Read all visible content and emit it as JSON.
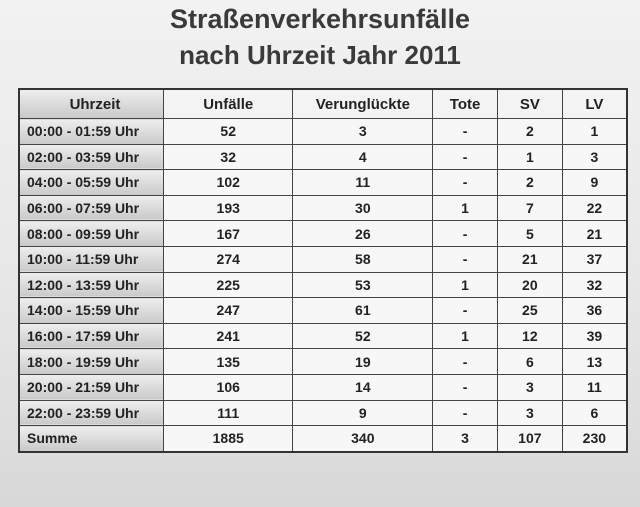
{
  "header": {
    "title": "Straßenverkehrsunfälle",
    "subtitle": "nach Uhrzeit Jahr 2011"
  },
  "table": {
    "columns": [
      "Uhrzeit",
      "Unfälle",
      "Verunglückte",
      "Tote",
      "SV",
      "LV"
    ],
    "rows": [
      [
        "00:00 - 01:59 Uhr",
        "52",
        "3",
        "-",
        "2",
        "1"
      ],
      [
        "02:00 - 03:59 Uhr",
        "32",
        "4",
        "-",
        "1",
        "3"
      ],
      [
        "04:00 - 05:59 Uhr",
        "102",
        "11",
        "-",
        "2",
        "9"
      ],
      [
        "06:00 - 07:59 Uhr",
        "193",
        "30",
        "1",
        "7",
        "22"
      ],
      [
        "08:00 - 09:59 Uhr",
        "167",
        "26",
        "-",
        "5",
        "21"
      ],
      [
        "10:00 - 11:59 Uhr",
        "274",
        "58",
        "-",
        "21",
        "37"
      ],
      [
        "12:00 - 13:59 Uhr",
        "225",
        "53",
        "1",
        "20",
        "32"
      ],
      [
        "14:00 - 15:59 Uhr",
        "247",
        "61",
        "-",
        "25",
        "36"
      ],
      [
        "16:00 - 17:59 Uhr",
        "241",
        "52",
        "1",
        "12",
        "39"
      ],
      [
        "18:00 - 19:59 Uhr",
        "135",
        "19",
        "-",
        "6",
        "13"
      ],
      [
        "20:00 - 21:59 Uhr",
        "106",
        "14",
        "-",
        "3",
        "11"
      ],
      [
        "22:00 - 23:59 Uhr",
        "111",
        "9",
        "-",
        "3",
        "6"
      ],
      [
        "Summe",
        "1885",
        "340",
        "3",
        "107",
        "230"
      ]
    ]
  }
}
